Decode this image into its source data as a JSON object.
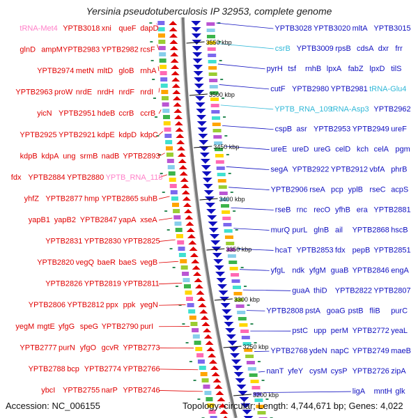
{
  "title": "Yersinia pseudotuberculosis IP 32953, complete genome",
  "footer": {
    "accession": "Accession: NC_006155",
    "stats": "Topology: circular; Length: 4,744,671 bp; Genes: 4,022"
  },
  "colors": {
    "forward_strand": "#e00000",
    "reverse_strand": "#1010c0",
    "trna": "#ff7fc8",
    "rna": "#30b8d8",
    "backbone": "#7a7a7a"
  },
  "kbp_ticks": [
    "3550 kbp",
    "3500 kbp",
    "3450 kbp",
    "3400 kbp",
    "3350 kbp",
    "3300 kbp",
    "3250 kbp",
    "3200 kbp"
  ],
  "left_labels": [
    {
      "text": "tRNA-Met4",
      "color": "pink"
    },
    {
      "text": "YPTB3018",
      "color": "red"
    },
    {
      "text": "xni",
      "color": "red"
    },
    {
      "text": "queF",
      "color": "red"
    },
    {
      "text": "dapD",
      "color": "red"
    },
    {
      "text": "glnD",
      "color": "red"
    },
    {
      "text": "ampM",
      "color": "red"
    },
    {
      "text": "YPTB2983",
      "color": "red"
    },
    {
      "text": "YPTB2982",
      "color": "red"
    },
    {
      "text": "rcsF",
      "color": "red"
    },
    {
      "text": "YPTB2974",
      "color": "red"
    },
    {
      "text": "metN",
      "color": "red"
    },
    {
      "text": "mltD",
      "color": "red"
    },
    {
      "text": "gloB",
      "color": "red"
    },
    {
      "text": "rnhA",
      "color": "red"
    },
    {
      "text": "YPTB2963",
      "color": "red"
    },
    {
      "text": "proW",
      "color": "red"
    },
    {
      "text": "nrdE",
      "color": "red"
    },
    {
      "text": "nrdH",
      "color": "red"
    },
    {
      "text": "nrdF",
      "color": "red"
    },
    {
      "text": "nrdI",
      "color": "red"
    },
    {
      "text": "yicN",
      "color": "red"
    },
    {
      "text": "YPTB2951",
      "color": "red"
    },
    {
      "text": "hdeB",
      "color": "red"
    },
    {
      "text": "ccrB",
      "color": "red"
    },
    {
      "text": "ccrB",
      "color": "red"
    },
    {
      "text": "YPTB2925",
      "color": "red"
    },
    {
      "text": "YPTB2921",
      "color": "red"
    },
    {
      "text": "kdpE",
      "color": "red"
    },
    {
      "text": "kdpD",
      "color": "red"
    },
    {
      "text": "kdpC",
      "color": "red"
    },
    {
      "text": "kdpB",
      "color": "red"
    },
    {
      "text": "kdpA",
      "color": "red"
    },
    {
      "text": "ung",
      "color": "red"
    },
    {
      "text": "srmB",
      "color": "red"
    },
    {
      "text": "nadB",
      "color": "red"
    },
    {
      "text": "YPTB2893",
      "color": "red"
    },
    {
      "text": "fdx",
      "color": "red"
    },
    {
      "text": "YPTB2884",
      "color": "red"
    },
    {
      "text": "YPTB2880",
      "color": "red"
    },
    {
      "text": "YPTB_RNA_118",
      "color": "pink"
    },
    {
      "text": "yhfZ",
      "color": "red"
    },
    {
      "text": "YPTB2877",
      "color": "red"
    },
    {
      "text": "hmp",
      "color": "red"
    },
    {
      "text": "YPTB2865",
      "color": "red"
    },
    {
      "text": "suhB",
      "color": "red"
    },
    {
      "text": "yapB1",
      "color": "red"
    },
    {
      "text": "yapB2",
      "color": "red"
    },
    {
      "text": "YPTB2847",
      "color": "red"
    },
    {
      "text": "yapA",
      "color": "red"
    },
    {
      "text": "xseA",
      "color": "red"
    },
    {
      "text": "YPTB2831",
      "color": "red"
    },
    {
      "text": "YPTB2830",
      "color": "red"
    },
    {
      "text": "YPTB2825",
      "color": "red"
    },
    {
      "text": "YPTB2820",
      "color": "red"
    },
    {
      "text": "vegQ",
      "color": "red"
    },
    {
      "text": "baeR",
      "color": "red"
    },
    {
      "text": "baeS",
      "color": "red"
    },
    {
      "text": "vegB",
      "color": "red"
    },
    {
      "text": "YPTB2826",
      "color": "red"
    },
    {
      "text": "YPTB2819",
      "color": "red"
    },
    {
      "text": "YPTB2811",
      "color": "red"
    },
    {
      "text": "YPTB2806",
      "color": "red"
    },
    {
      "text": "YPTB2812",
      "color": "red"
    },
    {
      "text": "ppx",
      "color": "red"
    },
    {
      "text": "ppk",
      "color": "red"
    },
    {
      "text": "yegN",
      "color": "red"
    },
    {
      "text": "yegM",
      "color": "red"
    },
    {
      "text": "mgtE",
      "color": "red"
    },
    {
      "text": "yfgG",
      "color": "red"
    },
    {
      "text": "speG",
      "color": "red"
    },
    {
      "text": "YPTB2790",
      "color": "red"
    },
    {
      "text": "purI",
      "color": "red"
    },
    {
      "text": "YPTB2777",
      "color": "red"
    },
    {
      "text": "purN",
      "color": "red"
    },
    {
      "text": "yfgO",
      "color": "red"
    },
    {
      "text": "gcvR",
      "color": "red"
    },
    {
      "text": "YPTB2773",
      "color": "red"
    },
    {
      "text": "YPTB2788",
      "color": "red"
    },
    {
      "text": "bcp",
      "color": "red"
    },
    {
      "text": "YPTB2774",
      "color": "red"
    },
    {
      "text": "YPTB2766",
      "color": "red"
    },
    {
      "text": "ybcI",
      "color": "red"
    },
    {
      "text": "YPTB2755",
      "color": "red"
    },
    {
      "text": "narP",
      "color": "red"
    },
    {
      "text": "YPTB2746",
      "color": "red"
    }
  ],
  "right_labels": [
    {
      "text": "YPTB3028",
      "color": "blue"
    },
    {
      "text": "YPTB3020",
      "color": "blue"
    },
    {
      "text": "mltA",
      "color": "blue"
    },
    {
      "text": "YPTB3015",
      "color": "blue"
    },
    {
      "text": "csrB",
      "color": "cyan"
    },
    {
      "text": "YPTB3009",
      "color": "blue"
    },
    {
      "text": "rpsB",
      "color": "blue"
    },
    {
      "text": "cdsA",
      "color": "blue"
    },
    {
      "text": "dxr",
      "color": "blue"
    },
    {
      "text": "frr",
      "color": "blue"
    },
    {
      "text": "pyrH",
      "color": "blue"
    },
    {
      "text": "tsf",
      "color": "blue"
    },
    {
      "text": "rnhB",
      "color": "blue"
    },
    {
      "text": "lpxA",
      "color": "blue"
    },
    {
      "text": "fabZ",
      "color": "blue"
    },
    {
      "text": "lpxD",
      "color": "blue"
    },
    {
      "text": "tilS",
      "color": "blue"
    },
    {
      "text": "cutF",
      "color": "blue"
    },
    {
      "text": "YPTB2980",
      "color": "blue"
    },
    {
      "text": "YPTB2981",
      "color": "blue"
    },
    {
      "text": "tRNA-Glu4",
      "color": "cyan"
    },
    {
      "text": "YPTB_RNA_109",
      "color": "cyan"
    },
    {
      "text": "tRNA-Asp3",
      "color": "cyan"
    },
    {
      "text": "YPTB2962",
      "color": "blue"
    },
    {
      "text": "cspB",
      "color": "blue"
    },
    {
      "text": "asr",
      "color": "blue"
    },
    {
      "text": "YPTB2953",
      "color": "blue"
    },
    {
      "text": "YPTB2949",
      "color": "blue"
    },
    {
      "text": "ureF",
      "color": "blue"
    },
    {
      "text": "ureE",
      "color": "blue"
    },
    {
      "text": "ureD",
      "color": "blue"
    },
    {
      "text": "ureG",
      "color": "blue"
    },
    {
      "text": "celD",
      "color": "blue"
    },
    {
      "text": "kch",
      "color": "blue"
    },
    {
      "text": "celA",
      "color": "blue"
    },
    {
      "text": "pgm",
      "color": "blue"
    },
    {
      "text": "segA",
      "color": "blue"
    },
    {
      "text": "YPTB2922",
      "color": "blue"
    },
    {
      "text": "YPTB2912",
      "color": "blue"
    },
    {
      "text": "vbfA",
      "color": "blue"
    },
    {
      "text": "phrB",
      "color": "blue"
    },
    {
      "text": "YPTB2906",
      "color": "blue"
    },
    {
      "text": "rseA",
      "color": "blue"
    },
    {
      "text": "pcp",
      "color": "blue"
    },
    {
      "text": "yplB",
      "color": "blue"
    },
    {
      "text": "rseC",
      "color": "blue"
    },
    {
      "text": "acpS",
      "color": "blue"
    },
    {
      "text": "rseB",
      "color": "blue"
    },
    {
      "text": "rnc",
      "color": "blue"
    },
    {
      "text": "recO",
      "color": "blue"
    },
    {
      "text": "yfhB",
      "color": "blue"
    },
    {
      "text": "era",
      "color": "blue"
    },
    {
      "text": "YPTB2881",
      "color": "blue"
    },
    {
      "text": "murQ",
      "color": "blue"
    },
    {
      "text": "purL",
      "color": "blue"
    },
    {
      "text": "glnB",
      "color": "blue"
    },
    {
      "text": "ail",
      "color": "blue"
    },
    {
      "text": "YPTB2868",
      "color": "blue"
    },
    {
      "text": "hscB",
      "color": "blue"
    },
    {
      "text": "hcaT",
      "color": "blue"
    },
    {
      "text": "YPTB2853",
      "color": "blue"
    },
    {
      "text": "fdx",
      "color": "blue"
    },
    {
      "text": "pepB",
      "color": "blue"
    },
    {
      "text": "YPTB2851",
      "color": "blue"
    },
    {
      "text": "yfgL",
      "color": "blue"
    },
    {
      "text": "ndk",
      "color": "blue"
    },
    {
      "text": "yfgM",
      "color": "blue"
    },
    {
      "text": "guaB",
      "color": "blue"
    },
    {
      "text": "YPTB2846",
      "color": "blue"
    },
    {
      "text": "engA",
      "color": "blue"
    },
    {
      "text": "guaA",
      "color": "blue"
    },
    {
      "text": "thiD",
      "color": "blue"
    },
    {
      "text": "YPTB2822",
      "color": "blue"
    },
    {
      "text": "YPTB2807",
      "color": "blue"
    },
    {
      "text": "YPTB2808",
      "color": "blue"
    },
    {
      "text": "pstA",
      "color": "blue"
    },
    {
      "text": "goaG",
      "color": "blue"
    },
    {
      "text": "pstB",
      "color": "blue"
    },
    {
      "text": "fliB",
      "color": "blue"
    },
    {
      "text": "purC",
      "color": "blue"
    },
    {
      "text": "pstC",
      "color": "blue"
    },
    {
      "text": "upp",
      "color": "blue"
    },
    {
      "text": "perM",
      "color": "blue"
    },
    {
      "text": "YPTB2772",
      "color": "blue"
    },
    {
      "text": "yeaL",
      "color": "blue"
    },
    {
      "text": "YPTB2768",
      "color": "blue"
    },
    {
      "text": "ydeN",
      "color": "blue"
    },
    {
      "text": "napC",
      "color": "blue"
    },
    {
      "text": "YPTB2749",
      "color": "blue"
    },
    {
      "text": "maeB",
      "color": "blue"
    },
    {
      "text": "nanT",
      "color": "blue"
    },
    {
      "text": "yfeY",
      "color": "blue"
    },
    {
      "text": "cysM",
      "color": "blue"
    },
    {
      "text": "cysP",
      "color": "blue"
    },
    {
      "text": "YPTB2726",
      "color": "blue"
    },
    {
      "text": "zipA",
      "color": "blue"
    },
    {
      "text": "ligA",
      "color": "blue"
    },
    {
      "text": "mntH",
      "color": "blue"
    },
    {
      "text": "glk",
      "color": "blue"
    }
  ]
}
